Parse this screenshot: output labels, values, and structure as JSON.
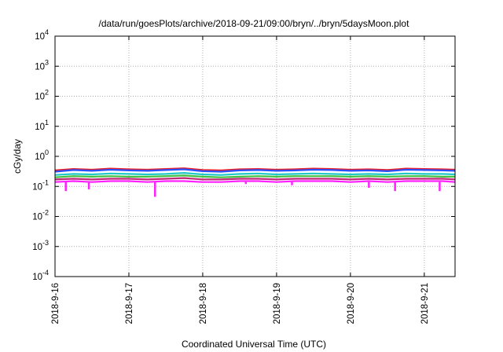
{
  "chart_data": {
    "type": "line",
    "title": "/data/run/goesPlots/archive/2018-09-21/09:00/bryn/../bryn/5daysMoon.plot",
    "xlabel": "Coordinated Universal Time (UTC)",
    "ylabel": "cGy/day",
    "y_scale": "log",
    "ylim": [
      0.0001,
      10000
    ],
    "xlim": [
      "2018-09-16T00:00",
      "2018-09-21T10:00"
    ],
    "x_ticks": [
      "2018-9-16",
      "2018-9-17",
      "2018-9-18",
      "2018-9-19",
      "2018-9-20",
      "2018-9-21"
    ],
    "y_ticks": [
      {
        "value": 0.0001,
        "base": "10",
        "exp": "-4"
      },
      {
        "value": 0.001,
        "base": "10",
        "exp": "-3"
      },
      {
        "value": 0.01,
        "base": "10",
        "exp": "-2"
      },
      {
        "value": 0.1,
        "base": "10",
        "exp": "-1"
      },
      {
        "value": 1,
        "base": "10",
        "exp": "0"
      },
      {
        "value": 10,
        "base": "10",
        "exp": "1"
      },
      {
        "value": 100,
        "base": "10",
        "exp": "2"
      },
      {
        "value": 1000,
        "base": "10",
        "exp": "3"
      },
      {
        "value": 10000,
        "base": "10",
        "exp": "4"
      }
    ],
    "grid": true,
    "legend": "none",
    "x": [
      "2018-09-16T00:00",
      "2018-09-16T06:00",
      "2018-09-16T12:00",
      "2018-09-16T18:00",
      "2018-09-17T00:00",
      "2018-09-17T06:00",
      "2018-09-17T12:00",
      "2018-09-17T18:00",
      "2018-09-18T00:00",
      "2018-09-18T06:00",
      "2018-09-18T12:00",
      "2018-09-18T18:00",
      "2018-09-19T00:00",
      "2018-09-19T06:00",
      "2018-09-19T12:00",
      "2018-09-19T18:00",
      "2018-09-20T00:00",
      "2018-09-20T06:00",
      "2018-09-20T12:00",
      "2018-09-20T18:00",
      "2018-09-21T00:00",
      "2018-09-21T06:00",
      "2018-09-21T10:00"
    ],
    "series": [
      {
        "color": "#e8202a",
        "values": [
          0.34,
          0.38,
          0.36,
          0.39,
          0.37,
          0.36,
          0.38,
          0.4,
          0.35,
          0.34,
          0.37,
          0.38,
          0.36,
          0.37,
          0.39,
          0.38,
          0.36,
          0.37,
          0.35,
          0.39,
          0.38,
          0.37,
          0.36
        ]
      },
      {
        "color": "#2850ff",
        "values": [
          0.31,
          0.35,
          0.33,
          0.36,
          0.34,
          0.33,
          0.35,
          0.37,
          0.32,
          0.31,
          0.34,
          0.35,
          0.33,
          0.34,
          0.36,
          0.35,
          0.33,
          0.34,
          0.32,
          0.36,
          0.35,
          0.34,
          0.33
        ]
      },
      {
        "color": "#20c8c8",
        "values": [
          0.24,
          0.26,
          0.25,
          0.27,
          0.26,
          0.25,
          0.26,
          0.28,
          0.25,
          0.24,
          0.26,
          0.27,
          0.25,
          0.26,
          0.27,
          0.26,
          0.25,
          0.26,
          0.25,
          0.27,
          0.26,
          0.26,
          0.25
        ]
      },
      {
        "color": "#40c040",
        "values": [
          0.2,
          0.22,
          0.21,
          0.22,
          0.21,
          0.21,
          0.22,
          0.23,
          0.21,
          0.2,
          0.21,
          0.22,
          0.21,
          0.22,
          0.22,
          0.22,
          0.21,
          0.22,
          0.21,
          0.22,
          0.22,
          0.21,
          0.21
        ]
      },
      {
        "color": "#c02878",
        "values": [
          0.17,
          0.18,
          0.17,
          0.18,
          0.18,
          0.17,
          0.18,
          0.19,
          0.17,
          0.17,
          0.18,
          0.18,
          0.17,
          0.18,
          0.18,
          0.18,
          0.17,
          0.18,
          0.17,
          0.18,
          0.18,
          0.18,
          0.17
        ]
      },
      {
        "color": "#ff20ff",
        "values": [
          0.14,
          0.15,
          0.14,
          0.15,
          0.15,
          0.14,
          0.15,
          0.15,
          0.14,
          0.14,
          0.15,
          0.15,
          0.14,
          0.15,
          0.15,
          0.15,
          0.14,
          0.15,
          0.14,
          0.15,
          0.15,
          0.15,
          0.14
        ]
      }
    ],
    "dips": [
      {
        "x": "2018-09-16T03:30",
        "value": 0.07
      },
      {
        "x": "2018-09-16T11:00",
        "value": 0.08
      },
      {
        "x": "2018-09-17T08:30",
        "value": 0.045
      },
      {
        "x": "2018-09-18T14:00",
        "value": 0.12
      },
      {
        "x": "2018-09-19T05:00",
        "value": 0.11
      },
      {
        "x": "2018-09-20T06:00",
        "value": 0.09
      },
      {
        "x": "2018-09-20T14:30",
        "value": 0.07
      },
      {
        "x": "2018-09-21T05:00",
        "value": 0.07
      }
    ]
  }
}
